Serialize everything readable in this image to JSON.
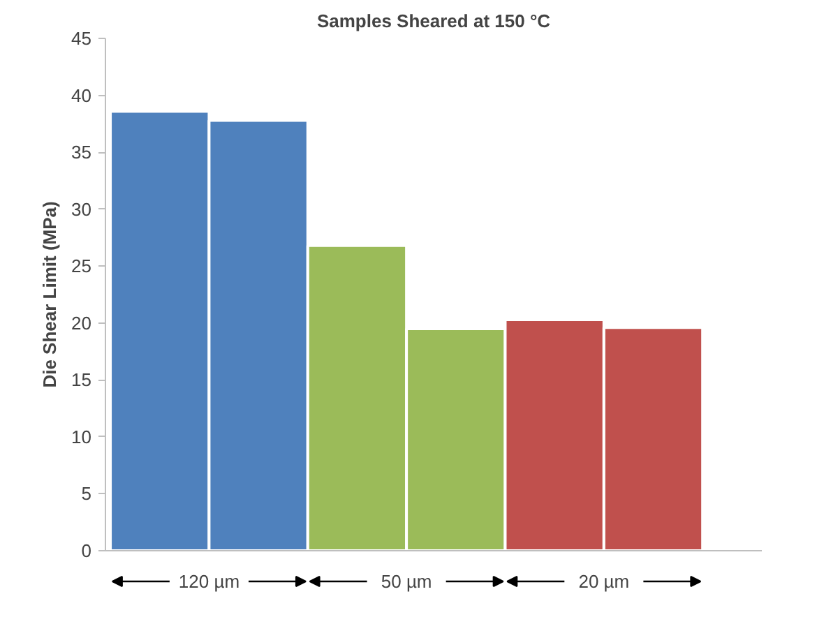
{
  "chart_data": {
    "type": "bar",
    "title": "Samples Sheared at 150 °C",
    "ylabel": "Die Shear Limit (MPa)",
    "categories": [
      null,
      null,
      null,
      null,
      null,
      null
    ],
    "values": [
      38.6,
      37.8,
      26.8,
      19.5,
      20.3,
      19.6
    ],
    "colors": [
      "#4f81bd",
      "#4f81bd",
      "#9bbb59",
      "#9bbb59",
      "#c0504d",
      "#c0504d"
    ],
    "ylim": [
      0,
      45
    ],
    "yticks": [
      0,
      5,
      10,
      15,
      20,
      25,
      30,
      35,
      40,
      45
    ],
    "annotations": [
      "120 µm",
      "50 µm",
      "20 µm"
    ],
    "grid": false
  }
}
